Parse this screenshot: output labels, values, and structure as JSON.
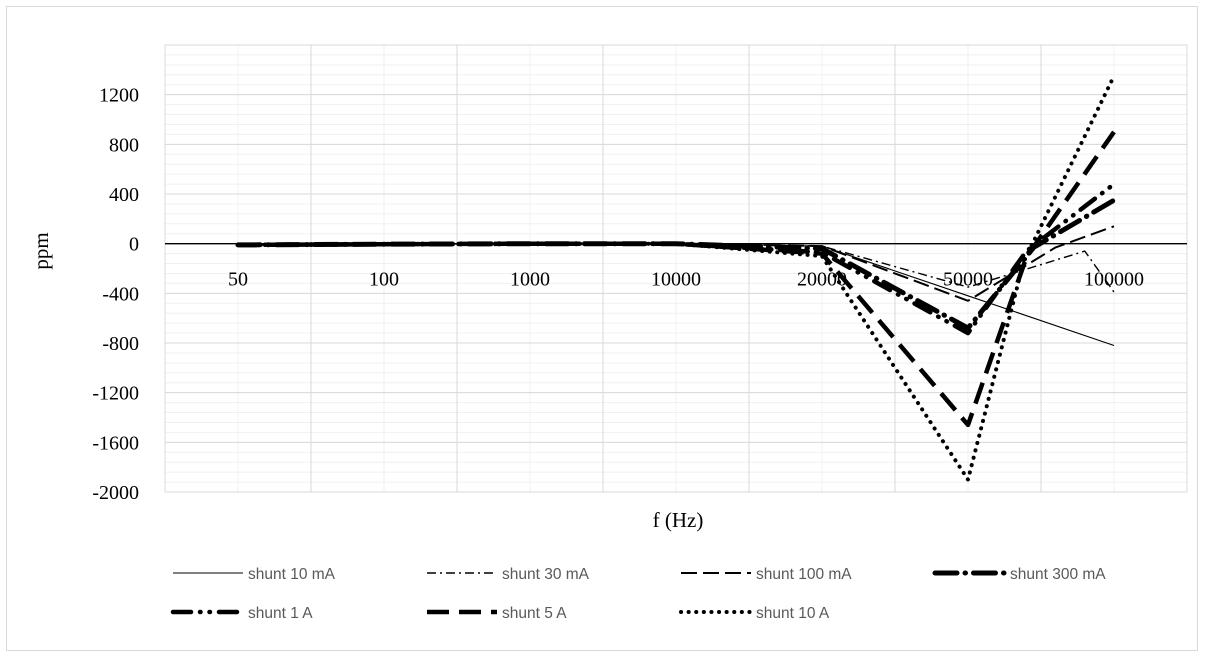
{
  "chart_data": {
    "type": "line",
    "title": "",
    "xlabel": "f (Hz)",
    "ylabel": "ppm",
    "categories": [
      "50",
      "100",
      "1000",
      "10000",
      "20000",
      "50000",
      "100000"
    ],
    "ylim": [
      -2000,
      1600
    ],
    "yticks": [
      -2000,
      -1600,
      -1200,
      -800,
      -400,
      0,
      400,
      800,
      1200
    ],
    "grid": true,
    "legend_position": "bottom",
    "series": [
      {
        "name": "shunt 10 mA",
        "style": "solid-thin",
        "values": [
          -10,
          -4,
          0,
          0,
          -20,
          -420,
          -820
        ],
        "extra": []
      },
      {
        "name": "shunt 30 mA",
        "style": "dashdot-thin",
        "values": [
          -10,
          -4,
          0,
          0,
          -20,
          -350,
          -390
        ],
        "extra": [
          [
            5.8,
            -60
          ]
        ]
      },
      {
        "name": "shunt 100 mA",
        "style": "dash-medium",
        "values": [
          -10,
          -4,
          0,
          0,
          -20,
          -460,
          140
        ],
        "extra": [
          [
            5.6,
            -30
          ]
        ]
      },
      {
        "name": "shunt 300 mA",
        "style": "dashdot-heavy",
        "values": [
          -10,
          -4,
          0,
          0,
          -40,
          -680,
          350
        ],
        "extra": [
          [
            5.45,
            -30
          ]
        ]
      },
      {
        "name": "shunt 1 A",
        "style": "dashdot-bold",
        "values": [
          -10,
          -4,
          0,
          0,
          -70,
          -720,
          480
        ],
        "extra": [
          [
            5.4,
            -60
          ]
        ]
      },
      {
        "name": "shunt 5 A",
        "style": "dash-bold",
        "values": [
          -10,
          -4,
          0,
          0,
          -80,
          -1460,
          900
        ],
        "extra": [
          [
            5.4,
            -110
          ]
        ]
      },
      {
        "name": "shunt 10 A",
        "style": "dot-bold",
        "values": [
          -10,
          -4,
          0,
          0,
          -100,
          -1900,
          1350
        ],
        "extra": [
          [
            5.38,
            -150
          ]
        ]
      }
    ]
  }
}
